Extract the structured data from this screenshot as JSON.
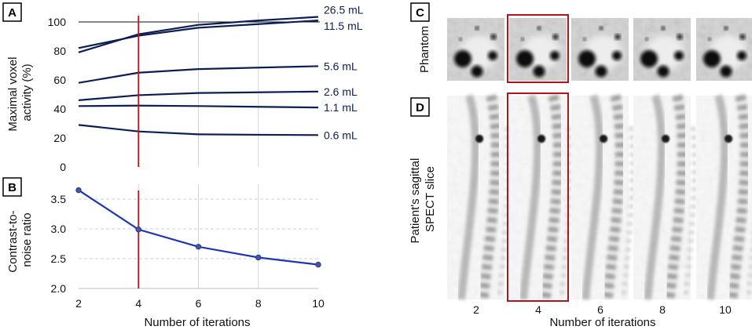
{
  "chart_data": [
    {
      "panel": "A",
      "type": "line",
      "title": "",
      "xlabel": "",
      "ylabel": "Maximal voxel activity (%)",
      "ylabel_lines": [
        "Maximal voxel",
        "activity (%)"
      ],
      "x": [
        2,
        4,
        6,
        8,
        10
      ],
      "xlim": [
        2,
        10
      ],
      "ylim": [
        0,
        100
      ],
      "yticks": [
        0,
        20,
        40,
        60,
        80,
        100
      ],
      "xgrid": [
        4,
        6,
        8
      ],
      "reference_line": {
        "y": 100
      },
      "marker_line": {
        "x": 4,
        "color": "#c0141c"
      },
      "line_color": "#0d1f52",
      "series": [
        {
          "name": "26.5 mL",
          "values": [
            79,
            91.5,
            98,
            101,
            103.5
          ]
        },
        {
          "name": "11.5 mL",
          "values": [
            82,
            90.5,
            96,
            98.5,
            101
          ]
        },
        {
          "name": "5.6 mL",
          "values": [
            58,
            65,
            67.5,
            68.5,
            69.5
          ]
        },
        {
          "name": "2.6 mL",
          "values": [
            46,
            49.5,
            51,
            51.5,
            52
          ]
        },
        {
          "name": "1.1 mL",
          "values": [
            42,
            42.3,
            42,
            41.5,
            41
          ]
        },
        {
          "name": "0.6 mL",
          "values": [
            29,
            24.5,
            22.5,
            22.2,
            22
          ]
        }
      ]
    },
    {
      "panel": "B",
      "type": "line",
      "title": "",
      "xlabel": "Number of iterations",
      "ylabel": "Contrast-to-noise ratio",
      "ylabel_lines": [
        "Contrast-to-",
        "noise  ratio"
      ],
      "x": [
        2,
        4,
        6,
        8,
        10
      ],
      "xticks": [
        "2",
        "4",
        "6",
        "8",
        "10"
      ],
      "xlim": [
        2,
        10
      ],
      "ylim": [
        2.0,
        3.75
      ],
      "yticks": [
        "2.0",
        "2.5",
        "3.0",
        "3.5"
      ],
      "xgrid": [
        4,
        6,
        8
      ],
      "marker_line": {
        "x": 4,
        "color": "#c0141c"
      },
      "line_color": "#1f35b0",
      "series": [
        {
          "name": "CNR",
          "values": [
            3.65,
            2.99,
            2.7,
            2.52,
            2.4
          ]
        }
      ]
    }
  ],
  "panel_labels": {
    "a": "A",
    "b": "B",
    "c": "C",
    "d": "D"
  },
  "images": {
    "phantom_label": "Phantom",
    "patient_label_lines": [
      "Patient's sagittal",
      "SPECT slice"
    ],
    "iterations": [
      "2",
      "4",
      "6",
      "8",
      "10"
    ],
    "xlabel": "Number of iterations",
    "highlight_index": 1,
    "highlight_color": "#b3141c"
  }
}
